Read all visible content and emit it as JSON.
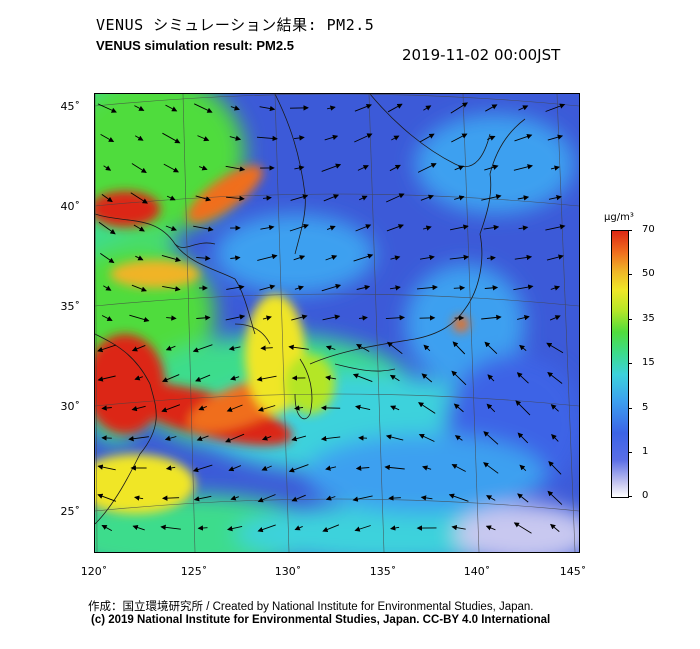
{
  "title_jp": "VENUS シミュレーション結果: PM2.5",
  "title_en": "VENUS simulation result: PM2.5",
  "timestamp": "2019-11-02 00:00JST",
  "lat_labels": [
    "45˚",
    "40˚",
    "35˚",
    "30˚",
    "25˚"
  ],
  "lon_labels": [
    "120˚",
    "125˚",
    "130˚",
    "135˚",
    "140˚",
    "145˚"
  ],
  "colorbar": {
    "unit": "µg/m³",
    "ticks": [
      "70",
      "50",
      "35",
      "15",
      "5",
      "1",
      "0"
    ],
    "colors": [
      "#ffffff",
      "#5a6ee6",
      "#3ca0f0",
      "#3cdc8c",
      "#b4e628",
      "#f0b428",
      "#dc2814"
    ]
  },
  "credit_line1": "作成：国立環境研究所 / Created by National Institute for Environmental Studies, Japan.",
  "credit_line2": "(c) 2019 National Institute for Environmental Studies, Japan. CC-BY 4.0 International"
}
